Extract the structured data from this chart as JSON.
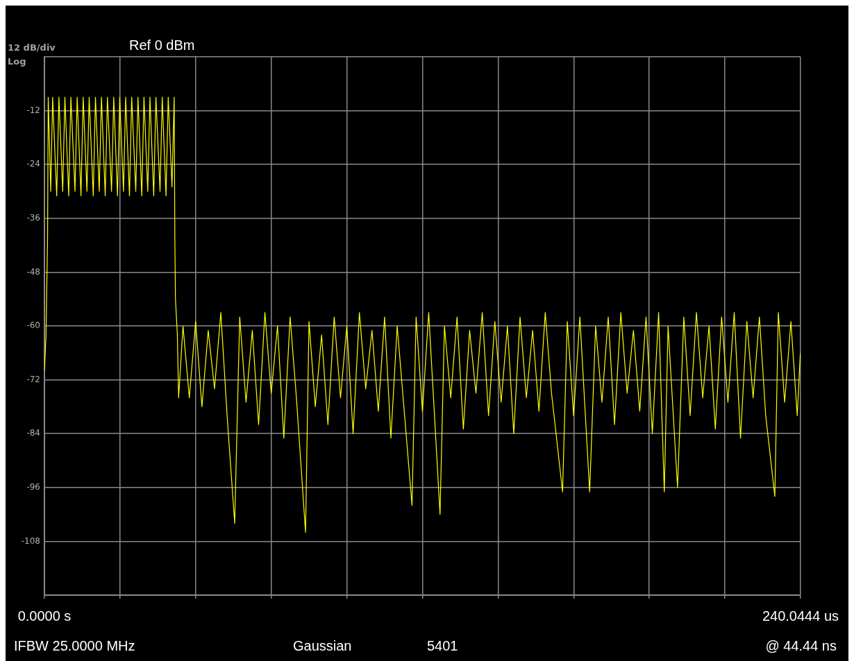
{
  "chart_data": {
    "type": "line",
    "title": "Ref 0 dBm",
    "annotations": [
      "12 dB/div",
      "Log",
      "IFBW 25.0000 MHz",
      "Gaussian",
      "5401",
      "@ 44.44 ns"
    ],
    "x": [
      0,
      0.5,
      1.0,
      1.2,
      2.0,
      2.6,
      3.9,
      4.6,
      5.8,
      6.5,
      7.7,
      8.4,
      9.7,
      10.4,
      11.6,
      12.3,
      13.5,
      14.2,
      15.5,
      16.2,
      17.4,
      18.1,
      19.3,
      20.0,
      21.3,
      22.0,
      23.2,
      23.9,
      25.1,
      25.8,
      27.0,
      27.7,
      29.0,
      29.7,
      30.9,
      31.6,
      32.8,
      33.5,
      34.7,
      35.4,
      36.7,
      37.4,
      38.6,
      39.3,
      40.5,
      41.2,
      41.4,
      41.6,
      42.2,
      42.6,
      44,
      46,
      48,
      50,
      52,
      54,
      56,
      58,
      60.4,
      62,
      64,
      66,
      68,
      70,
      72,
      74,
      76,
      78,
      80,
      82.9,
      84,
      86,
      88,
      90,
      92,
      94,
      96,
      98,
      100,
      102,
      104,
      106,
      108,
      110,
      112,
      114,
      116.7,
      118,
      120,
      122,
      125.6,
      127,
      129,
      131,
      133,
      135,
      137,
      139,
      141,
      143,
      145,
      147,
      149,
      151,
      153,
      155,
      157,
      159,
      161,
      164.5,
      166,
      168,
      170,
      173.1,
      175,
      177,
      179,
      181,
      183,
      185,
      187,
      189,
      191,
      193,
      195,
      196.8,
      198,
      201,
      203,
      205,
      207,
      209,
      211,
      213,
      215,
      217,
      219,
      221,
      223,
      225,
      227,
      229,
      231.9,
      233,
      235,
      237,
      239,
      240
    ],
    "series": [
      {
        "color": "#ffff00",
        "values": [
          -70,
          -62,
          -40,
          -9,
          -30,
          -9,
          -31,
          -9,
          -30,
          -9,
          -31,
          -9,
          -30,
          -9,
          -31,
          -9,
          -30,
          -9,
          -31,
          -9,
          -30,
          -9,
          -31,
          -9,
          -30,
          -9,
          -31,
          -9,
          -30,
          -9,
          -31,
          -9,
          -30,
          -9,
          -31,
          -9,
          -30,
          -9,
          -31,
          -9,
          -30,
          -9,
          -31,
          -9,
          -29,
          -9,
          -40,
          -54,
          -62,
          -76,
          -60,
          -76,
          -59,
          -78,
          -61,
          -74,
          -57,
          -80,
          -104,
          -58,
          -77,
          -61,
          -82,
          -57,
          -75,
          -60,
          -85,
          -58,
          -76,
          -106,
          -59,
          -78,
          -62,
          -82,
          -58,
          -76,
          -60,
          -84,
          -57,
          -74,
          -61,
          -79,
          -58,
          -85,
          -60,
          -77,
          -100,
          -58,
          -79,
          -57,
          -102,
          -60,
          -76,
          -58,
          -83,
          -61,
          -75,
          -57,
          -80,
          -59,
          -77,
          -60,
          -84,
          -58,
          -76,
          -61,
          -79,
          -57,
          -75,
          -97,
          -59,
          -80,
          -58,
          -97,
          -60,
          -77,
          -58,
          -82,
          -57,
          -75,
          -61,
          -79,
          -58,
          -84,
          -57,
          -97,
          -60,
          -96,
          -58,
          -80,
          -57,
          -76,
          -60,
          -83,
          -58,
          -77,
          -57,
          -85,
          -59,
          -76,
          -58,
          -80,
          -98,
          -57,
          -77,
          -59,
          -80,
          -66
        ]
      }
    ],
    "xlim": [
      0,
      240.0444
    ],
    "xticks": [
      {
        "value": 0,
        "label": "0.0000 s"
      },
      {
        "value": 24.00444,
        "label": null
      },
      {
        "value": 48.00888,
        "label": null
      },
      {
        "value": 72.01332,
        "label": null
      },
      {
        "value": 96.01776,
        "label": null
      },
      {
        "value": 120.0222,
        "label": null
      },
      {
        "value": 144.02664,
        "label": null
      },
      {
        "value": 168.03108,
        "label": null
      },
      {
        "value": 192.03552,
        "label": null
      },
      {
        "value": 216.03996,
        "label": null
      },
      {
        "value": 240.0444,
        "label": "240.0444 us"
      }
    ],
    "ylim": [
      -120,
      0
    ],
    "yticks": [
      {
        "value": -120,
        "label": null
      },
      -108,
      -96,
      -84,
      -72,
      -60,
      -48,
      -36,
      -24,
      -12,
      {
        "value": 0,
        "label": null
      }
    ],
    "grid": true,
    "legend": false,
    "marker": "none",
    "line_style": "solid"
  }
}
